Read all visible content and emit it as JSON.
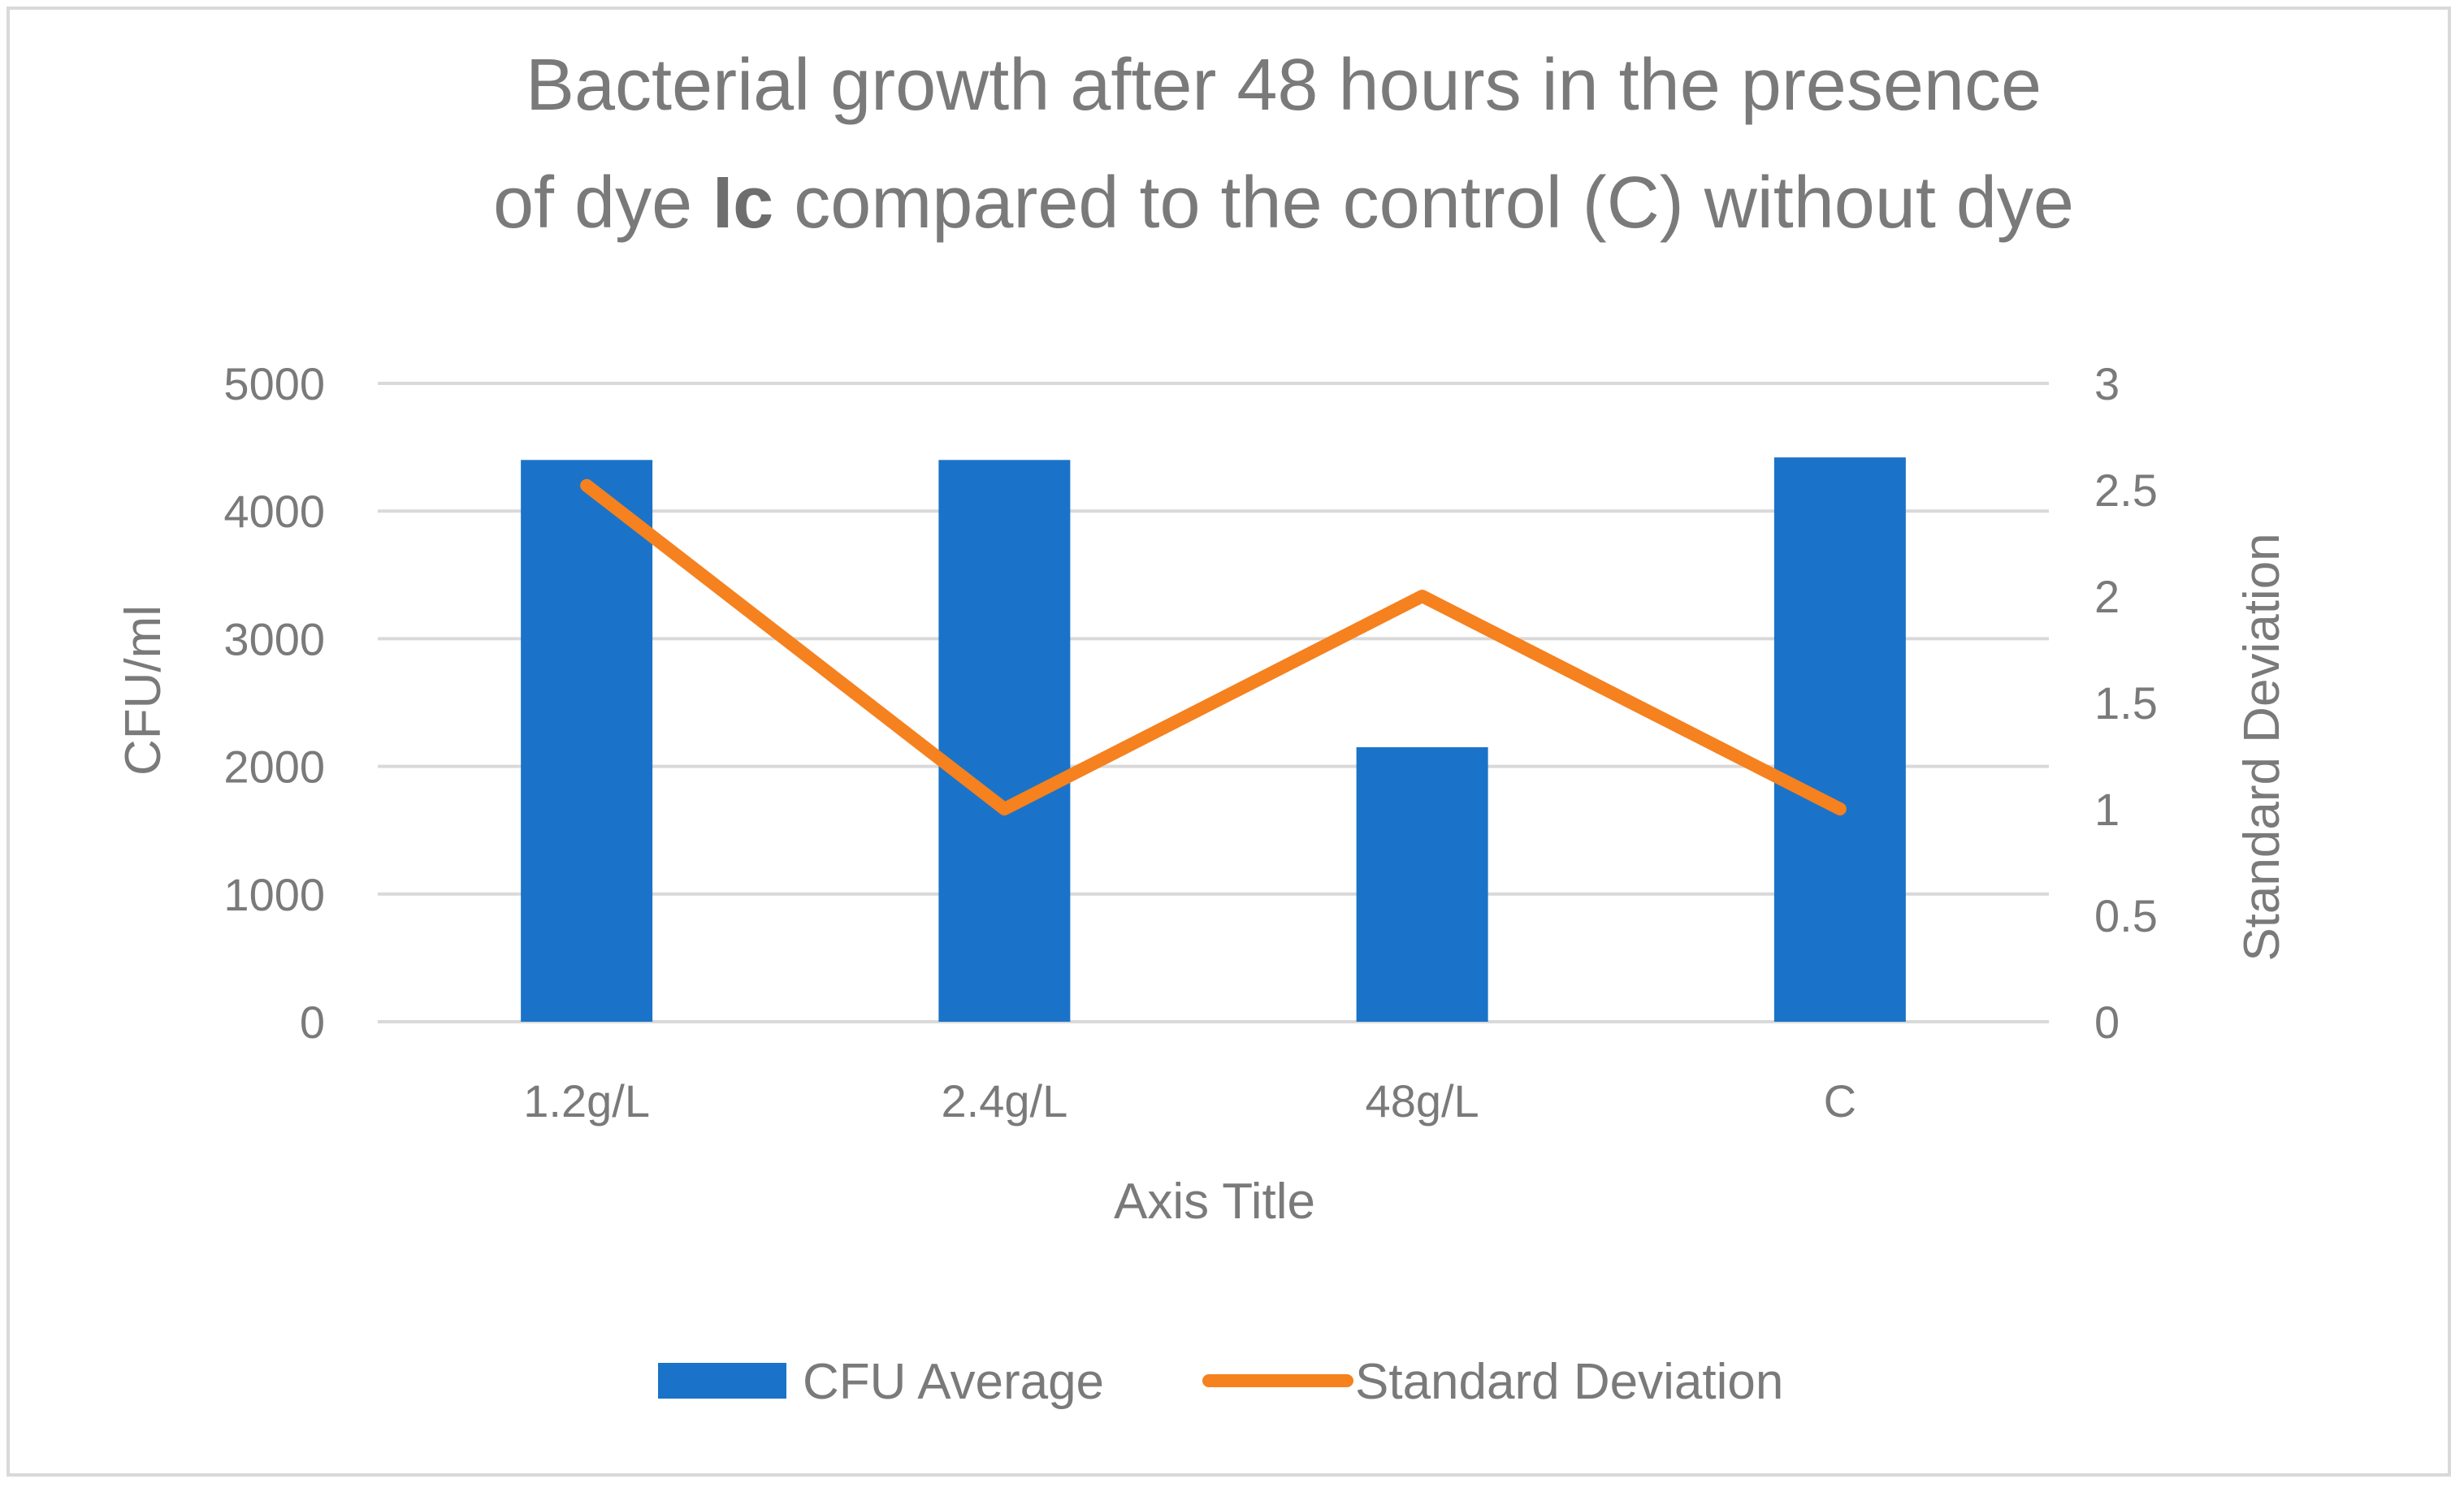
{
  "chart_data": {
    "type": "bar",
    "title_line1": "Bacterial growth after 48 hours in the presence",
    "title_line2_pre": "of dye ",
    "title_line2_bold": "Ic",
    "title_line2_post": " compared to the control (C) without dye",
    "xlabel": "Axis Title",
    "ylabel": "CFU/ml",
    "y2label": "Standard Deviation",
    "categories": [
      "1.2g/L",
      "2.4g/L",
      "48g/L",
      "C"
    ],
    "ylim": [
      0,
      5000
    ],
    "y_ticks": [
      0,
      1000,
      2000,
      3000,
      4000,
      5000
    ],
    "y2lim": [
      0,
      3
    ],
    "y2_ticks": [
      0,
      0.5,
      1,
      1.5,
      2,
      2.5,
      3
    ],
    "grid": true,
    "legend_position": "bottom",
    "series": [
      {
        "name": "CFU Average",
        "kind": "bar",
        "axis": "left",
        "color": "#1a73c8",
        "values": [
          4400,
          4400,
          2150,
          4420
        ]
      },
      {
        "name": "Standard Deviation",
        "kind": "line",
        "axis": "right",
        "color": "#f5811f",
        "values": [
          2.52,
          1.0,
          2.0,
          1.0
        ]
      }
    ]
  }
}
